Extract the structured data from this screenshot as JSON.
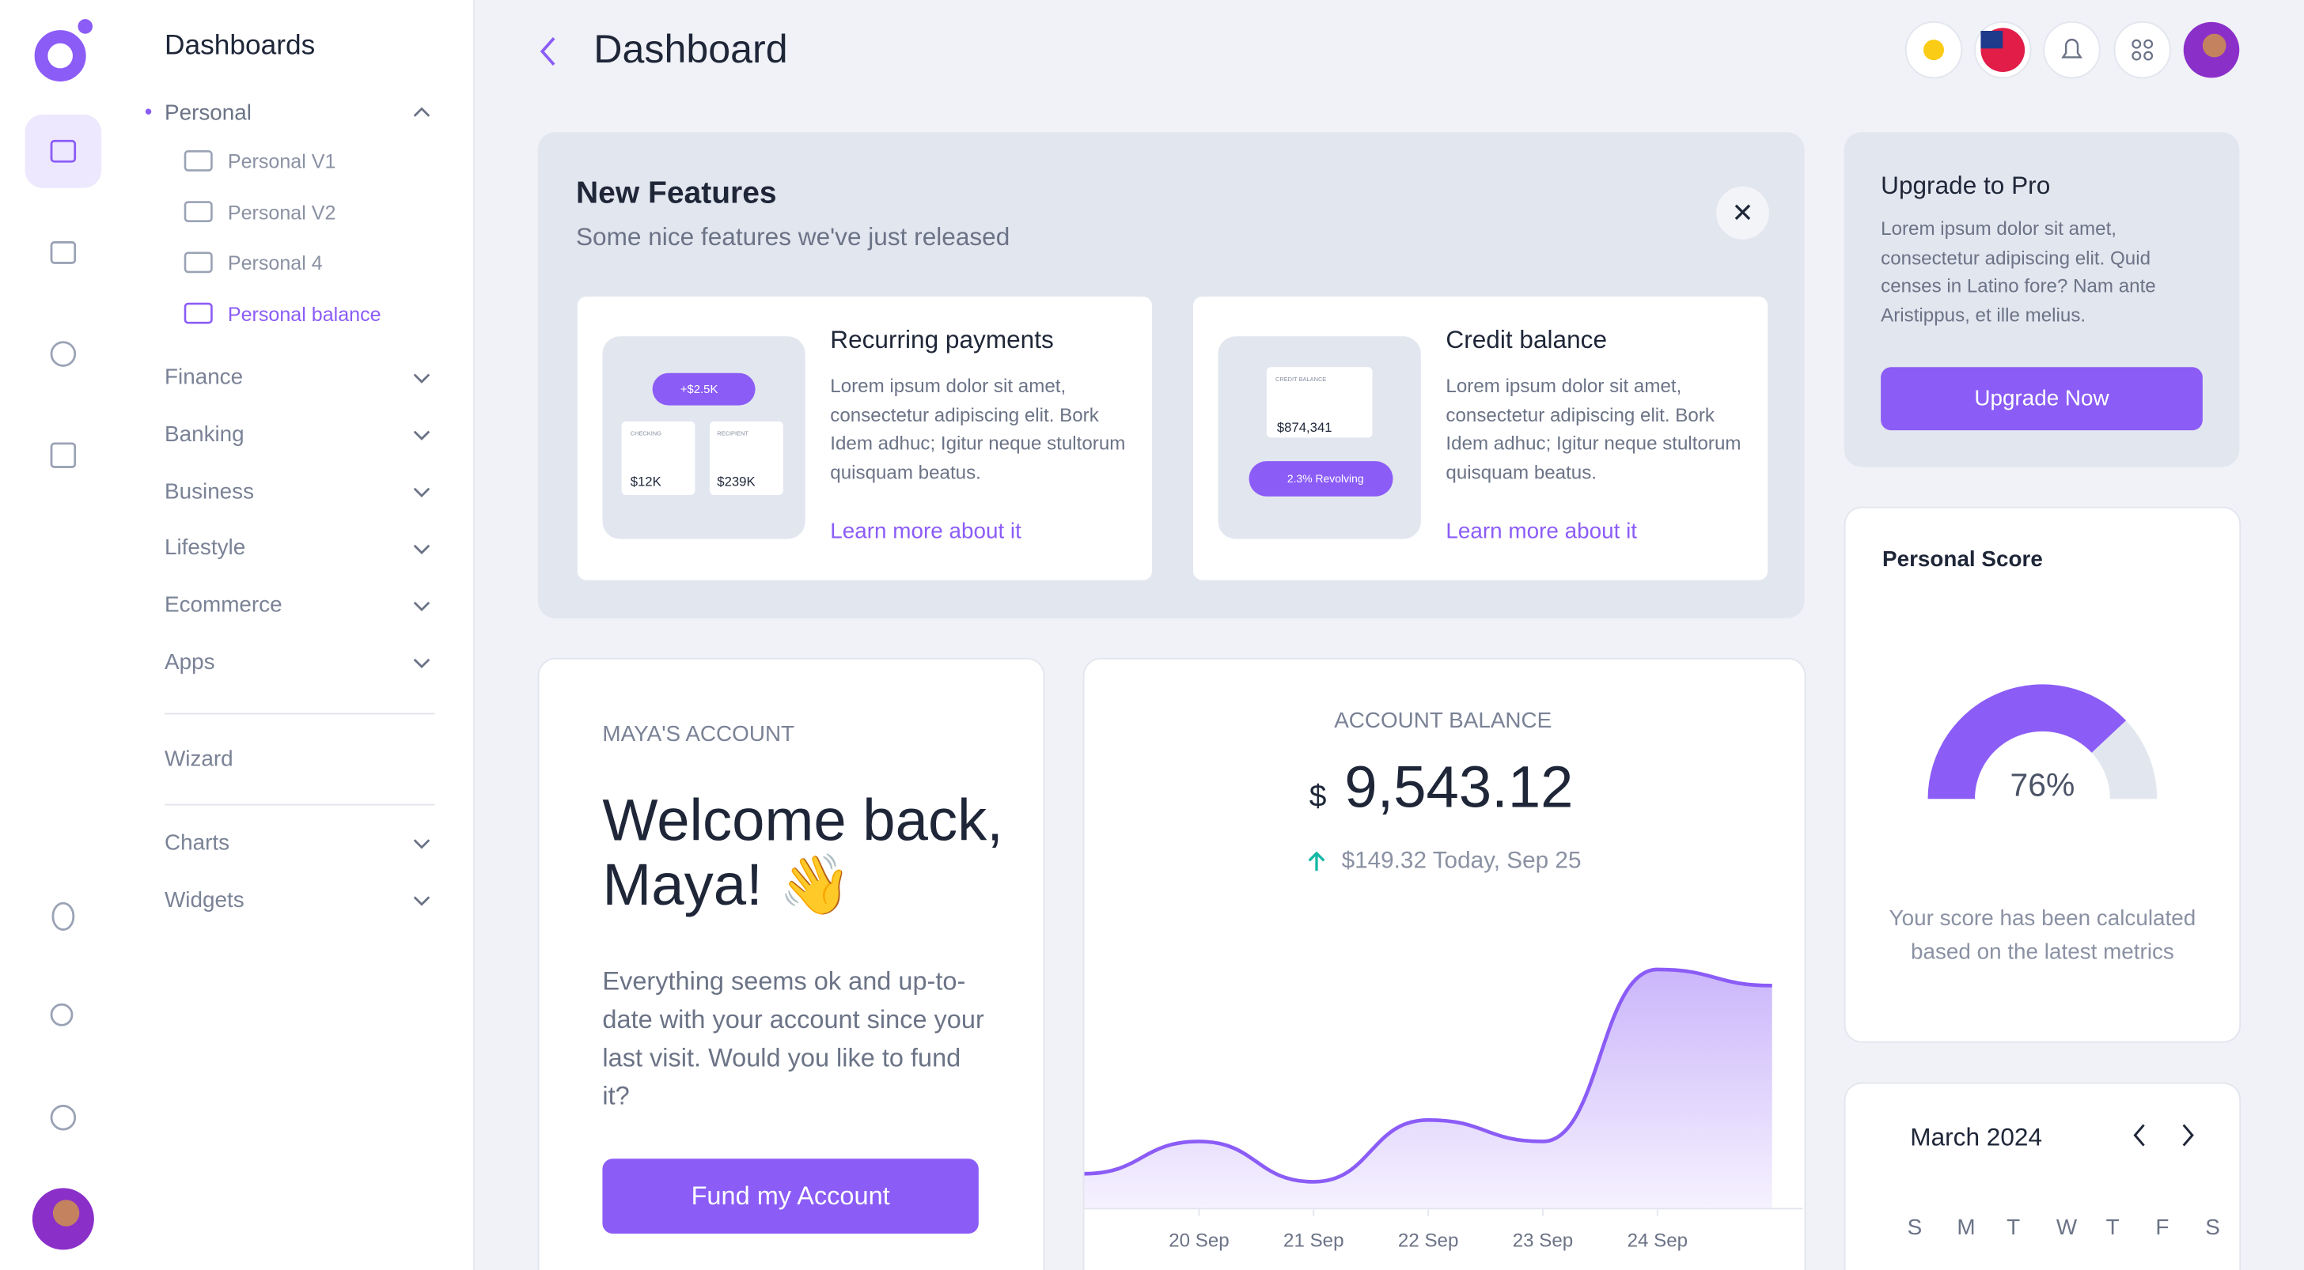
{
  "sidebar": {
    "title": "Dashboards",
    "open_group": "Personal",
    "open_items": [
      "Personal V1",
      "Personal V2",
      "Personal 4",
      "Personal balance"
    ],
    "groups": [
      "Finance",
      "Banking",
      "Business",
      "Lifestyle",
      "Ecommerce",
      "Apps"
    ],
    "wizard": "Wizard",
    "more_groups": [
      "Charts",
      "Widgets"
    ]
  },
  "header": {
    "title": "Dashboard"
  },
  "features": {
    "title": "New Features",
    "subtitle": "Some nice features we've just released",
    "cards": [
      {
        "title": "Recurring payments",
        "text": "Lorem ipsum dolor sit amet, consectetur adipiscing elit. Bork Idem adhuc; Igitur neque stultorum quisquam beatus.",
        "link": "Learn more about it",
        "illustration": [
          "+$2.5K",
          "CHECKING",
          "RECIPIENT",
          "$12K",
          "$239K"
        ]
      },
      {
        "title": "Credit balance",
        "text": "Lorem ipsum dolor sit amet, consectetur adipiscing elit. Bork Idem adhuc; Igitur neque stultorum quisquam beatus.",
        "link": "Learn more about it",
        "illustration": [
          "CREDIT BALANCE",
          "$874,341",
          "2.3% Revolving"
        ]
      }
    ]
  },
  "upgrade": {
    "title": "Upgrade to Pro",
    "text": "Lorem ipsum dolor sit amet, consectetur adipiscing elit. Quid censes in Latino fore? Nam ante Aristippus, et ille melius.",
    "button": "Upgrade Now"
  },
  "score": {
    "title": "Personal Score",
    "text": "Your score has been calculated based on the latest metrics"
  },
  "calendar": {
    "title": "March 2024",
    "weekdays": [
      "S",
      "M",
      "T",
      "W",
      "T",
      "F",
      "S"
    ]
  },
  "account": {
    "label": "MAYA'S ACCOUNT",
    "title": "Welcome back, Maya! 👋",
    "text": "Everything seems ok and up-to-date with your account since your last visit. Would you like to fund it?",
    "button": "Fund my Account"
  },
  "balance": {
    "label": "ACCOUNT BALANCE",
    "currency": "$",
    "amount": "9,543.12",
    "change": "$149.32 Today, Sep 25"
  },
  "chart_data": [
    {
      "type": "area",
      "categories": [
        null,
        "20 Sep",
        "21 Sep",
        "22 Sep",
        "23 Sep",
        "24 Sep",
        null
      ],
      "values": [
        13,
        25,
        10,
        33,
        25,
        89,
        83
      ],
      "ylim": [
        0,
        100
      ],
      "color": "#8b5cf6"
    },
    {
      "type": "gauge",
      "value": 76,
      "value_label": "76%",
      "lim": [
        0,
        100
      ],
      "color": "#8b5cf6",
      "track_color": "#e2e6ef"
    }
  ]
}
